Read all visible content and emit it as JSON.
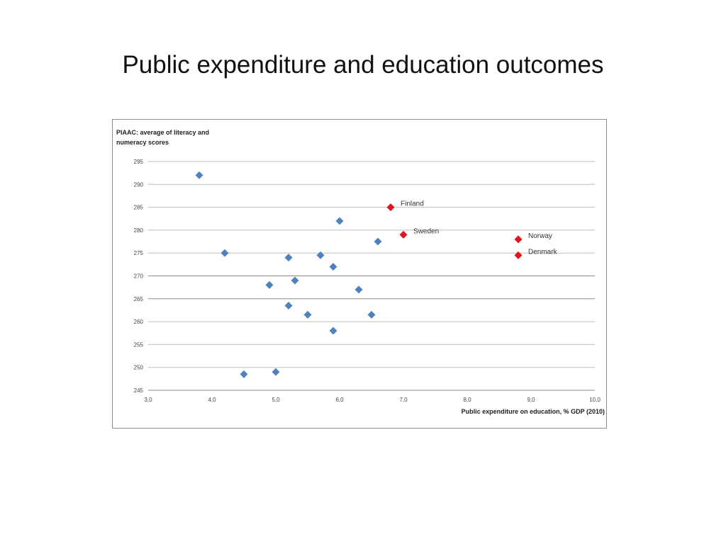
{
  "slide": {
    "title": "Public expenditure and education outcomes"
  },
  "chart_data": {
    "type": "scatter",
    "ylabel_lines": [
      "PIAAC: average of literacy and",
      "numeracy scores"
    ],
    "xlabel": "Public expenditure on education, % GDP (2010)",
    "xlim": [
      3.0,
      10.0
    ],
    "ylim": [
      245,
      295
    ],
    "x_ticks": [
      "3,0",
      "4,0",
      "5,0",
      "6,0",
      "7,0",
      "8,0",
      "9,0",
      "10,0"
    ],
    "y_ticks": [
      "245",
      "250",
      "255",
      "260",
      "265",
      "270",
      "275",
      "280",
      "285",
      "290",
      "295"
    ],
    "grid": "horizontal",
    "colors": {
      "default": "#4f81bd",
      "highlight": "#e0141c"
    },
    "series": [
      {
        "points": [
          {
            "x": 3.8,
            "y": 292
          },
          {
            "x": 4.2,
            "y": 275
          },
          {
            "x": 4.5,
            "y": 248.5
          },
          {
            "x": 4.9,
            "y": 268
          },
          {
            "x": 5.0,
            "y": 249
          },
          {
            "x": 5.2,
            "y": 274
          },
          {
            "x": 5.2,
            "y": 263.5
          },
          {
            "x": 5.3,
            "y": 269
          },
          {
            "x": 5.5,
            "y": 261.5
          },
          {
            "x": 5.7,
            "y": 274.5
          },
          {
            "x": 5.9,
            "y": 272
          },
          {
            "x": 5.9,
            "y": 258
          },
          {
            "x": 6.0,
            "y": 282
          },
          {
            "x": 6.3,
            "y": 267
          },
          {
            "x": 6.5,
            "y": 261.5
          },
          {
            "x": 6.6,
            "y": 277.5
          }
        ]
      },
      {
        "highlight": true,
        "points": [
          {
            "x": 6.8,
            "y": 285,
            "label": "Finland"
          },
          {
            "x": 7.0,
            "y": 279,
            "label": "Sweden"
          },
          {
            "x": 8.8,
            "y": 278,
            "label": "Norway"
          },
          {
            "x": 8.8,
            "y": 274.5,
            "label": "Denmark"
          }
        ]
      }
    ]
  }
}
